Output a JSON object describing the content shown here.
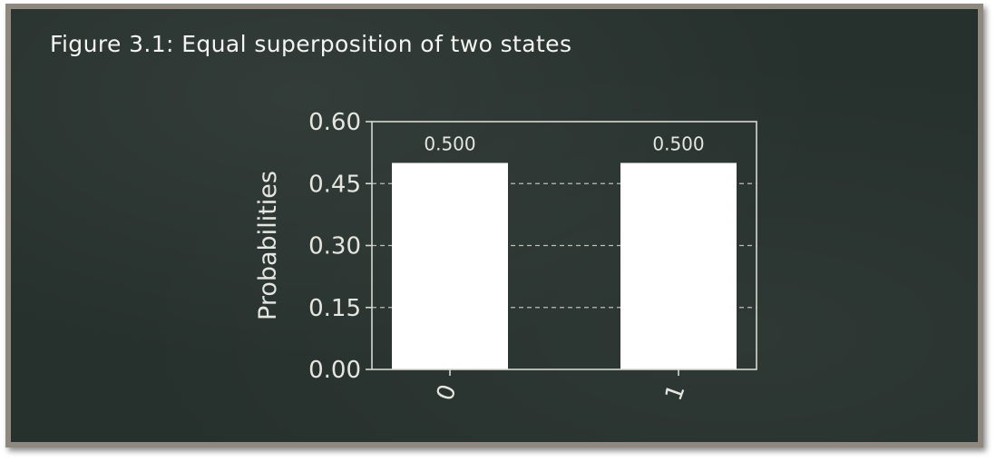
{
  "caption": "Figure 3.1: Equal superposition of two states",
  "chart_data": {
    "type": "bar",
    "categories": [
      "0",
      "1"
    ],
    "values": [
      0.5,
      0.5
    ],
    "data_labels": [
      "0.500",
      "0.500"
    ],
    "ylabel": "Probabilities",
    "ylim": [
      0,
      0.6
    ],
    "yticks": [
      0.0,
      0.15,
      0.3,
      0.45,
      0.6
    ],
    "ytick_labels": [
      "0.00",
      "0.15",
      "0.30",
      "0.45",
      "0.60"
    ],
    "grid": "horizontal dashed",
    "colors": {
      "bar": "#ffffff",
      "axis": "#d8d8d2",
      "grid": "#bfbfb8",
      "text": "#e6e6e0",
      "background": "#26302c"
    }
  }
}
